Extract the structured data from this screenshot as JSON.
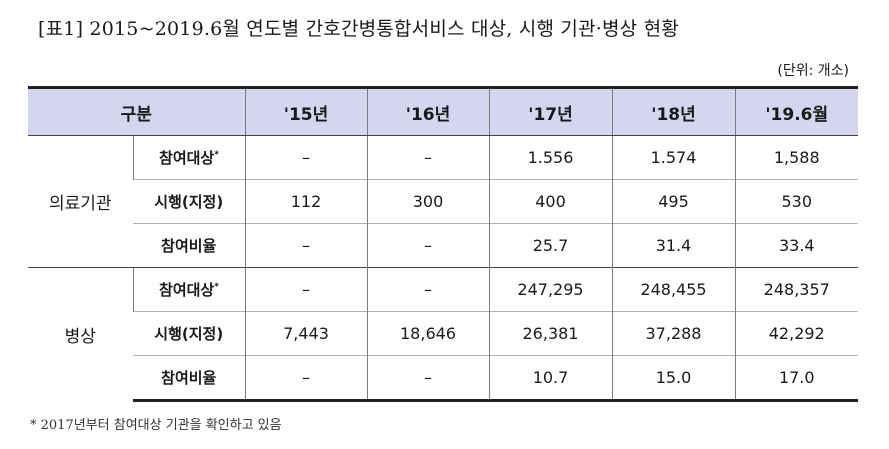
{
  "title": "[표1] 2015~2019.6월 연도별 간호간병통합서비스 대상, 시행 기관·병상 현황",
  "unit": "(단위: 개소)",
  "header": {
    "category": "구분",
    "years": [
      "'15년",
      "'16년",
      "'17년",
      "'18년",
      "'19.6월"
    ]
  },
  "groups": [
    {
      "name": "의료기관",
      "rows": [
        {
          "label": "참여대상",
          "mark": "*",
          "values": [
            "–",
            "–",
            "1.556",
            "1.574",
            "1,588"
          ]
        },
        {
          "label": "시행(지정)",
          "mark": "",
          "values": [
            "112",
            "300",
            "400",
            "495",
            "530"
          ]
        },
        {
          "label": "참여비율",
          "mark": "",
          "values": [
            "–",
            "–",
            "25.7",
            "31.4",
            "33.4"
          ]
        }
      ]
    },
    {
      "name": "병상",
      "rows": [
        {
          "label": "참여대상",
          "mark": "*",
          "values": [
            "–",
            "–",
            "247,295",
            "248,455",
            "248,357"
          ]
        },
        {
          "label": "시행(지정)",
          "mark": "",
          "values": [
            "7,443",
            "18,646",
            "26,381",
            "37,288",
            "42,292"
          ]
        },
        {
          "label": "참여비율",
          "mark": "",
          "values": [
            "–",
            "–",
            "10.7",
            "15.0",
            "17.0"
          ]
        }
      ]
    }
  ],
  "footnote": "* 2017년부터 참여대상 기관을 확인하고 있음"
}
